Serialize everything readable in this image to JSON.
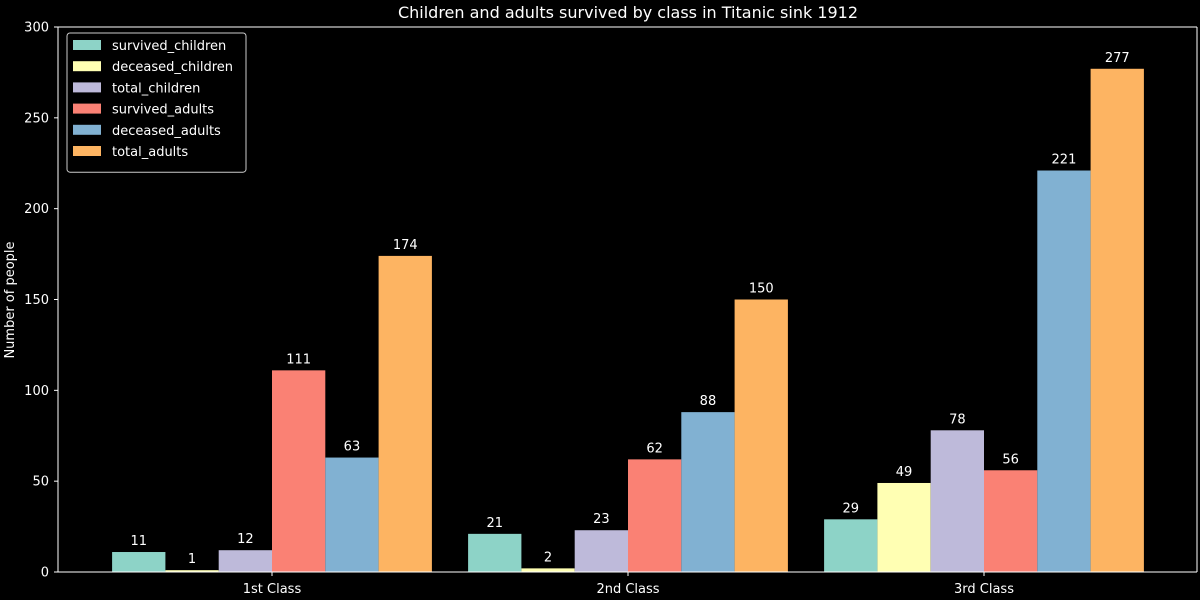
{
  "chart_data": {
    "type": "bar",
    "title": "Children and adults survived by class in Titanic sink 1912",
    "xlabel": "",
    "ylabel": "Number of people",
    "categories": [
      "1st Class",
      "2nd Class",
      "3rd Class"
    ],
    "ylim": [
      0,
      300
    ],
    "yticks": [
      0,
      50,
      100,
      150,
      200,
      250,
      300
    ],
    "grid": false,
    "legend_position": "top-left",
    "background_color": "#000000",
    "text_color": "#ffffff",
    "series": [
      {
        "name": "survived_children",
        "color": "#8dd3c7",
        "values": [
          11,
          21,
          29
        ]
      },
      {
        "name": "deceased_children",
        "color": "#ffffb3",
        "values": [
          1,
          2,
          49
        ]
      },
      {
        "name": "total_children",
        "color": "#bebada",
        "values": [
          12,
          23,
          78
        ]
      },
      {
        "name": "survived_adults",
        "color": "#fa8174",
        "values": [
          111,
          62,
          56
        ]
      },
      {
        "name": "deceased_adults",
        "color": "#81b1d2",
        "values": [
          63,
          88,
          221
        ]
      },
      {
        "name": "total_adults",
        "color": "#fdb462",
        "values": [
          174,
          150,
          277
        ]
      }
    ]
  }
}
